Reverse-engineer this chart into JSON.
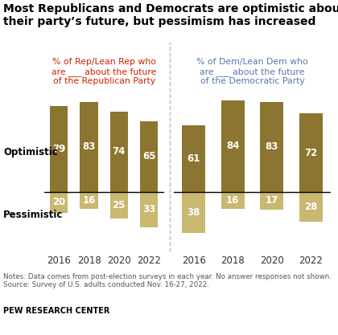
{
  "title_line1": "Most Republicans and Democrats are optimistic about",
  "title_line2": "their party’s future, but pessimism has increased",
  "left_subtitle": "% of Rep/Lean Rep who\nare ___ about the future\nof the Republican Party",
  "right_subtitle": "% of Dem/Lean Dem who\nare ___ about the future\nof the Democratic Party",
  "years": [
    "2016",
    "2018",
    "2020",
    "2022"
  ],
  "rep_optimistic": [
    79,
    83,
    74,
    65
  ],
  "rep_pessimistic": [
    20,
    16,
    25,
    33
  ],
  "dem_optimistic": [
    61,
    84,
    83,
    72
  ],
  "dem_pessimistic": [
    38,
    16,
    17,
    28
  ],
  "dark_gold": "#8B7530",
  "light_gold": "#C8B870",
  "bar_width": 0.6,
  "notes_line1": "Notes: Data comes from post-election surveys in each year. No answer responses not shown.",
  "notes_line2": "Source: Survey of U.S. adults conducted Nov. 16-27, 2022.",
  "source_bold": "PEW RESEARCH CENTER",
  "left_subtitle_color": "#CC2200",
  "right_subtitle_color": "#5577AA",
  "opt_label_color": "white",
  "pess_label_color": "white",
  "background_color": "white"
}
